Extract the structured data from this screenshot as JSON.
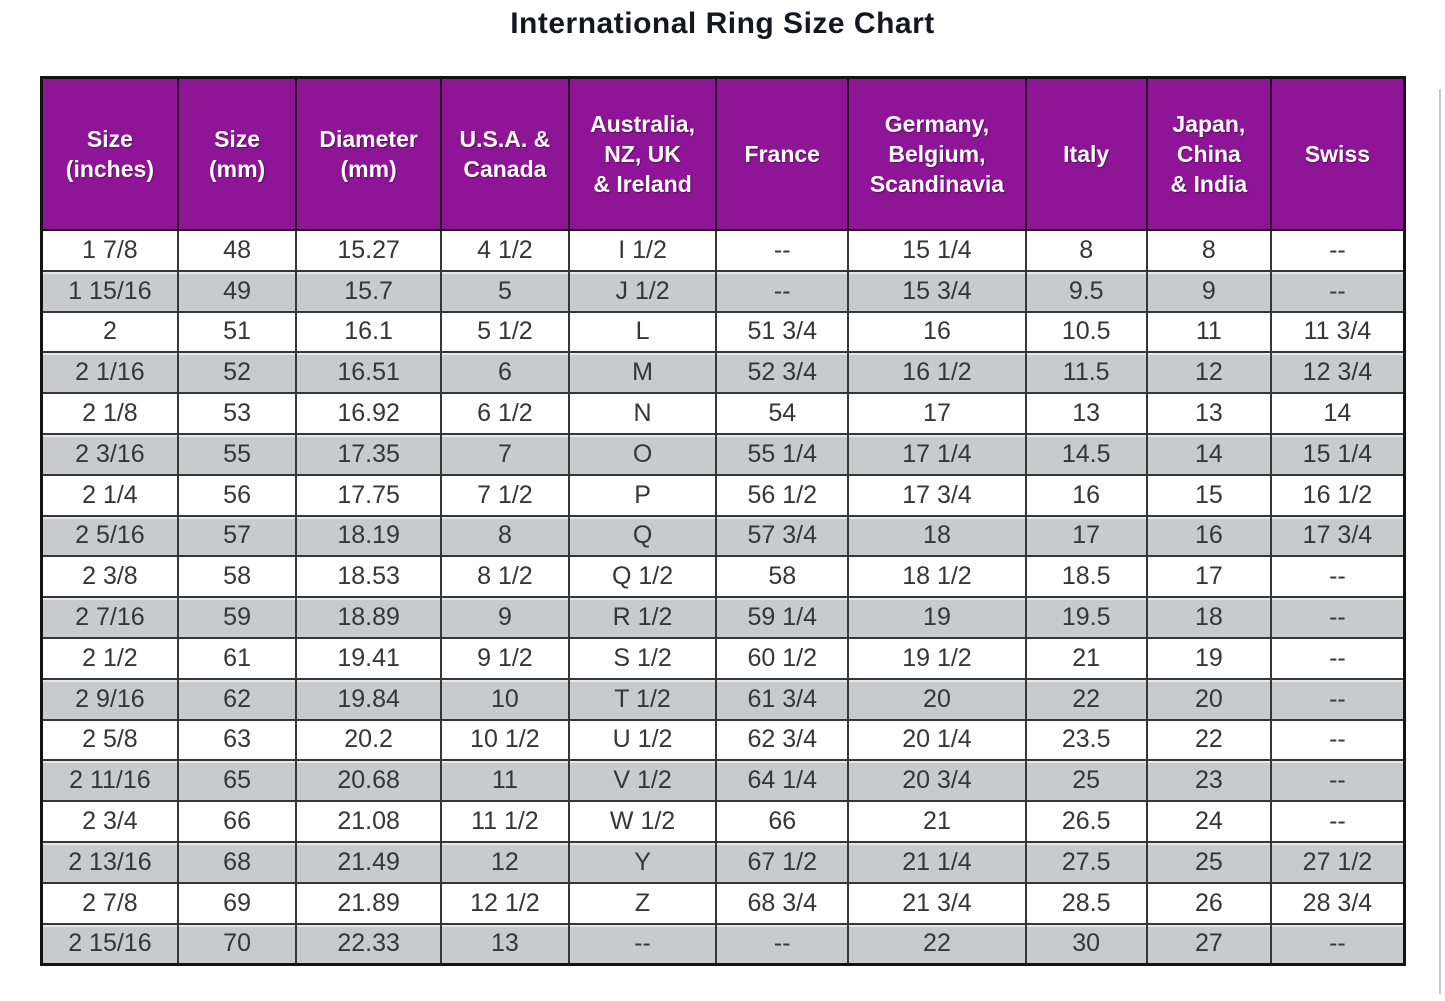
{
  "title": "International Ring Size Chart",
  "colors": {
    "header_bg": "#8e1596",
    "header_text": "#ffffff",
    "stripe_bg": "#c9cacc",
    "row_bg": "#fefefe",
    "grid": "#363636",
    "text": "#35353a"
  },
  "chart_data": {
    "type": "table",
    "title": "International Ring Size Chart",
    "columns": [
      "Size\n(inches)",
      "Size\n(mm)",
      "Diameter\n(mm)",
      "U.S.A. &\nCanada",
      "Australia,\nNZ, UK\n& Ireland",
      "France",
      "Germany,\nBelgium,\nScandinavia",
      "Italy",
      "Japan,\nChina\n& India",
      "Swiss"
    ],
    "rows": [
      [
        "1 7/8",
        "48",
        "15.27",
        "4 1/2",
        "I 1/2",
        "--",
        "15 1/4",
        "8",
        "8",
        "--"
      ],
      [
        "1 15/16",
        "49",
        "15.7",
        "5",
        "J 1/2",
        "--",
        "15 3/4",
        "9.5",
        "9",
        "--"
      ],
      [
        "2",
        "51",
        "16.1",
        "5 1/2",
        "L",
        "51 3/4",
        "16",
        "10.5",
        "11",
        "11 3/4"
      ],
      [
        "2 1/16",
        "52",
        "16.51",
        "6",
        "M",
        "52 3/4",
        "16 1/2",
        "11.5",
        "12",
        "12 3/4"
      ],
      [
        "2 1/8",
        "53",
        "16.92",
        "6 1/2",
        "N",
        "54",
        "17",
        "13",
        "13",
        "14"
      ],
      [
        "2 3/16",
        "55",
        "17.35",
        "7",
        "O",
        "55 1/4",
        "17 1/4",
        "14.5",
        "14",
        "15 1/4"
      ],
      [
        "2 1/4",
        "56",
        "17.75",
        "7 1/2",
        "P",
        "56 1/2",
        "17 3/4",
        "16",
        "15",
        "16 1/2"
      ],
      [
        "2 5/16",
        "57",
        "18.19",
        "8",
        "Q",
        "57 3/4",
        "18",
        "17",
        "16",
        "17 3/4"
      ],
      [
        "2 3/8",
        "58",
        "18.53",
        "8 1/2",
        "Q 1/2",
        "58",
        "18 1/2",
        "18.5",
        "17",
        "--"
      ],
      [
        "2 7/16",
        "59",
        "18.89",
        "9",
        "R 1/2",
        "59 1/4",
        "19",
        "19.5",
        "18",
        "--"
      ],
      [
        "2 1/2",
        "61",
        "19.41",
        "9 1/2",
        "S 1/2",
        "60 1/2",
        "19 1/2",
        "21",
        "19",
        "--"
      ],
      [
        "2 9/16",
        "62",
        "19.84",
        "10",
        "T 1/2",
        "61 3/4",
        "20",
        "22",
        "20",
        "--"
      ],
      [
        "2 5/8",
        "63",
        "20.2",
        "10 1/2",
        "U 1/2",
        "62 3/4",
        "20 1/4",
        "23.5",
        "22",
        "--"
      ],
      [
        "2 11/16",
        "65",
        "20.68",
        "11",
        "V 1/2",
        "64 1/4",
        "20 3/4",
        "25",
        "23",
        "--"
      ],
      [
        "2 3/4",
        "66",
        "21.08",
        "11 1/2",
        "W 1/2",
        "66",
        "21",
        "26.5",
        "24",
        "--"
      ],
      [
        "2 13/16",
        "68",
        "21.49",
        "12",
        "Y",
        "67 1/2",
        "21 1/4",
        "27.5",
        "25",
        "27 1/2"
      ],
      [
        "2 7/8",
        "69",
        "21.89",
        "12 1/2",
        "Z",
        "68 3/4",
        "21 3/4",
        "28.5",
        "26",
        "28 3/4"
      ],
      [
        "2 15/16",
        "70",
        "22.33",
        "13",
        "--",
        "--",
        "22",
        "30",
        "27",
        "--"
      ]
    ]
  }
}
